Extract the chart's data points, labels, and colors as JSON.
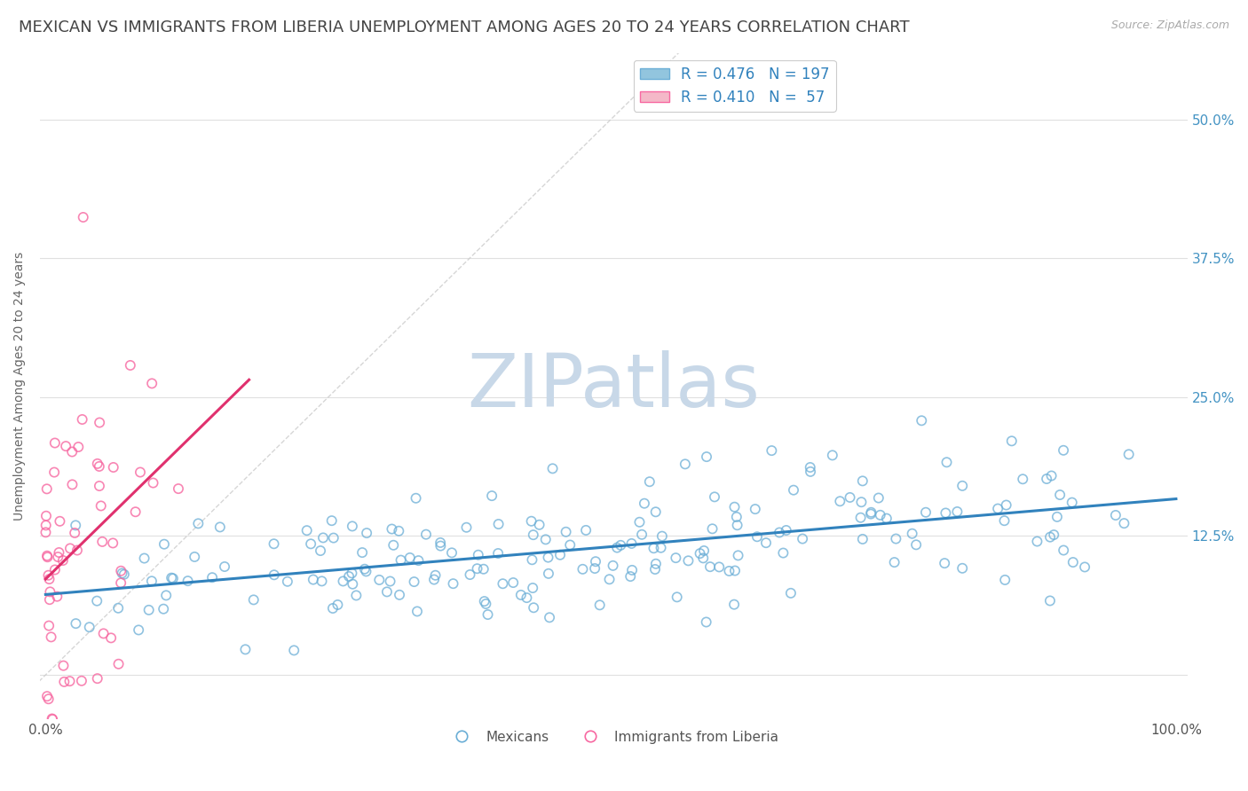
{
  "title": "MEXICAN VS IMMIGRANTS FROM LIBERIA UNEMPLOYMENT AMONG AGES 20 TO 24 YEARS CORRELATION CHART",
  "source_text": "Source: ZipAtlas.com",
  "ylabel": "Unemployment Among Ages 20 to 24 years",
  "watermark": "ZIPatlas",
  "xlim": [
    -0.005,
    1.01
  ],
  "ylim": [
    -0.04,
    0.56
  ],
  "ytick_positions": [
    0.0,
    0.125,
    0.25,
    0.375,
    0.5
  ],
  "yticklabels_right": [
    "",
    "12.5%",
    "25.0%",
    "37.5%",
    "50.0%"
  ],
  "mexican_R": 0.476,
  "mexican_N": 197,
  "liberia_R": 0.41,
  "liberia_N": 57,
  "blue_color": "#92c5de",
  "pink_color": "#f4b8c8",
  "blue_edge_color": "#6baed6",
  "pink_edge_color": "#f768a1",
  "blue_trend_color": "#3182bd",
  "pink_trend_color": "#e0316e",
  "diagonal_color": "#cccccc",
  "grid_color": "#e0e0e0",
  "background_color": "#ffffff",
  "title_color": "#444444",
  "title_fontsize": 13,
  "axis_label_fontsize": 10,
  "tick_fontsize": 11,
  "legend_fontsize": 12,
  "watermark_color": "#c8d8e8",
  "watermark_fontsize": 60,
  "seed_mexican": 7,
  "seed_liberia": 13
}
